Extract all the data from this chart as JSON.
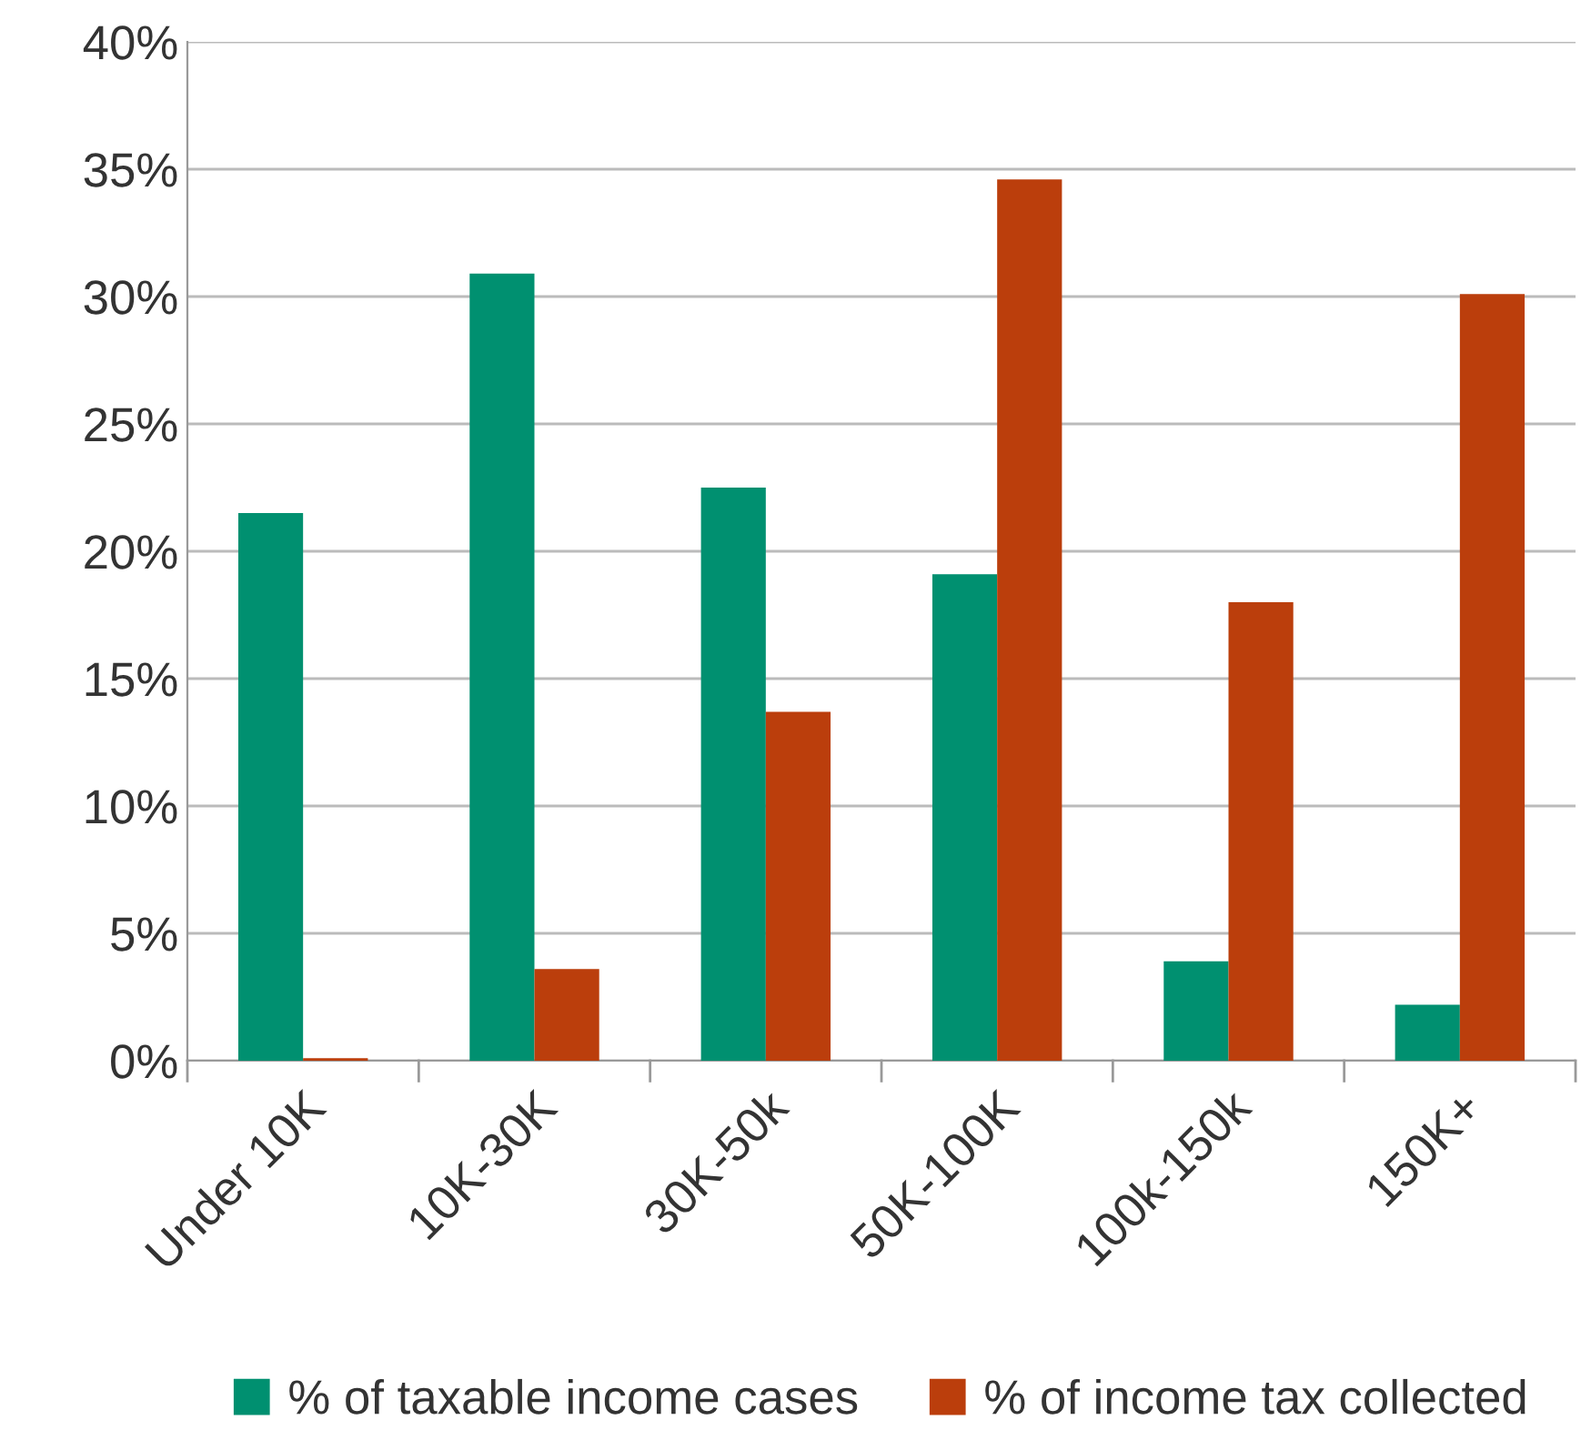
{
  "chart_data": {
    "type": "bar",
    "categories": [
      "Under 10K",
      "10K-30K",
      "30K-50k",
      "50K-100K",
      "100k-150k",
      "150K+"
    ],
    "series": [
      {
        "name": "% of taxable income cases",
        "color": "#009070",
        "values": [
          21.5,
          30.9,
          22.5,
          19.1,
          3.9,
          2.2
        ]
      },
      {
        "name": "% of income tax collected",
        "color": "#bb3e0c",
        "values": [
          0.1,
          3.6,
          13.7,
          34.6,
          18.0,
          30.1
        ]
      }
    ],
    "ylim": [
      0,
      40
    ],
    "yticks": [
      {
        "value": 0,
        "label": "0%"
      },
      {
        "value": 5,
        "label": "5%"
      },
      {
        "value": 10,
        "label": "10%"
      },
      {
        "value": 15,
        "label": "15%"
      },
      {
        "value": 20,
        "label": "20%"
      },
      {
        "value": 25,
        "label": "25%"
      },
      {
        "value": 30,
        "label": "30%"
      },
      {
        "value": 35,
        "label": "35%"
      },
      {
        "value": 40,
        "label": "40%"
      }
    ],
    "grid": "y",
    "legend": "bottom"
  }
}
